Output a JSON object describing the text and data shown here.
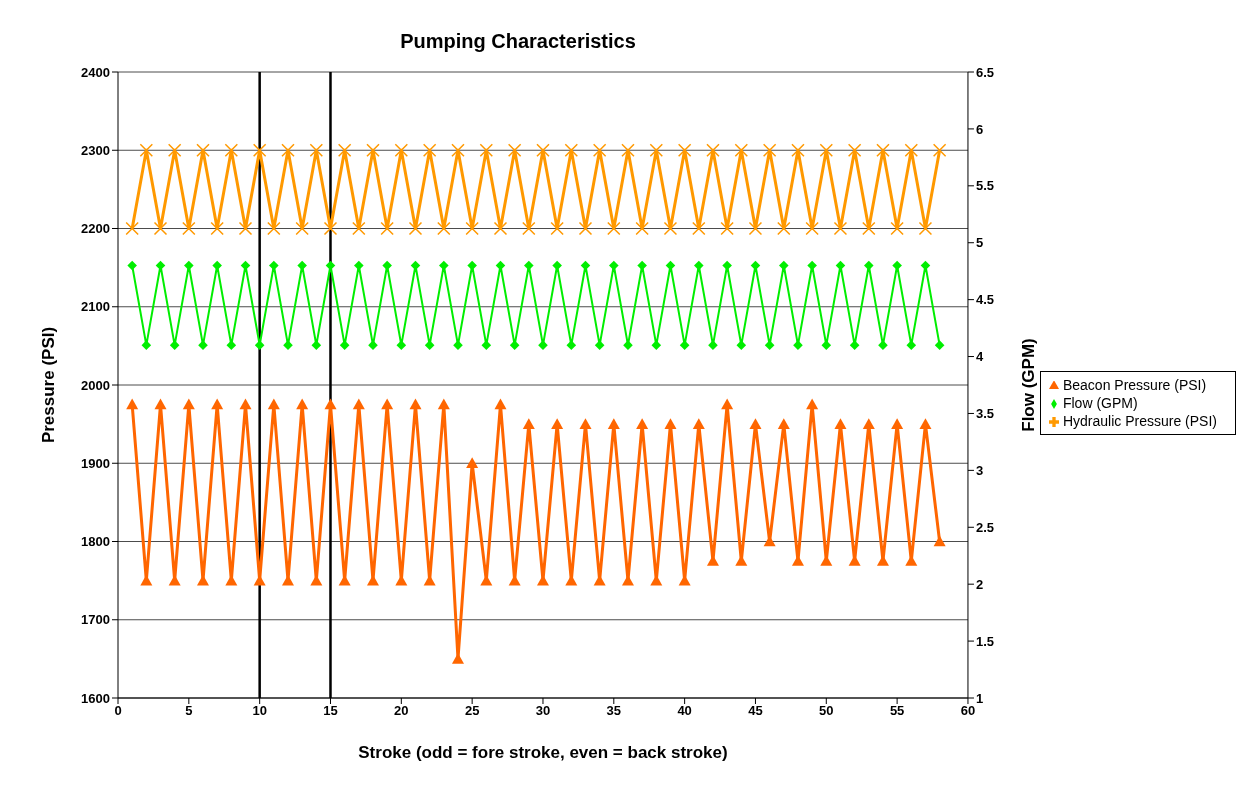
{
  "chart_data": {
    "type": "line",
    "title": "Pumping  Characteristics",
    "xlabel": "Stroke (odd = fore stroke, even = back stroke)",
    "ylabel": "Pressure (PSI)",
    "y2label": "Flow (GPM)",
    "x": [
      1,
      2,
      3,
      4,
      5,
      6,
      7,
      8,
      9,
      10,
      11,
      12,
      13,
      14,
      15,
      16,
      17,
      18,
      19,
      20,
      21,
      22,
      23,
      24,
      25,
      26,
      27,
      28,
      29,
      30,
      31,
      32,
      33,
      34,
      35,
      36,
      37,
      38,
      39,
      40,
      41,
      42,
      43,
      44,
      45,
      46,
      47,
      48,
      49,
      50,
      51,
      52,
      53,
      54,
      55,
      56,
      57,
      58
    ],
    "series": [
      {
        "name": "Beacon Pressure (PSI)",
        "color": "#ff6600",
        "marker": "triangle",
        "values": [
          1975,
          1750,
          1975,
          1750,
          1975,
          1750,
          1975,
          1750,
          1975,
          1750,
          1975,
          1750,
          1975,
          1750,
          1975,
          1750,
          1975,
          1750,
          1975,
          1750,
          1975,
          1750,
          1975,
          1650,
          1900,
          1750,
          1975,
          1750,
          1950,
          1750,
          1950,
          1750,
          1950,
          1750,
          1950,
          1750,
          1950,
          1750,
          1950,
          1750,
          1950,
          1775,
          1975,
          1775,
          1950,
          1800,
          1950,
          1775,
          1975,
          1775,
          1950,
          1775,
          1950,
          1775,
          1950,
          1775,
          1950,
          1800
        ]
      },
      {
        "name": "Hydraulic Pressure (PSI)",
        "color": "#ff9900",
        "marker": "cross",
        "values": [
          2200,
          2300,
          2200,
          2300,
          2200,
          2300,
          2200,
          2300,
          2200,
          2300,
          2200,
          2300,
          2200,
          2300,
          2200,
          2300,
          2200,
          2300,
          2200,
          2300,
          2200,
          2300,
          2200,
          2300,
          2200,
          2300,
          2200,
          2300,
          2200,
          2300,
          2200,
          2300,
          2200,
          2300,
          2200,
          2300,
          2200,
          2300,
          2200,
          2300,
          2200,
          2300,
          2200,
          2300,
          2200,
          2300,
          2200,
          2300,
          2200,
          2300,
          2200,
          2300,
          2200,
          2300,
          2200,
          2300,
          2200,
          2300
        ]
      },
      {
        "name": "Flow (GPM)",
        "color": "#00ee00",
        "marker": "diamond",
        "axis": "y2",
        "values": [
          4.8,
          4.1,
          4.8,
          4.1,
          4.8,
          4.1,
          4.8,
          4.1,
          4.8,
          4.1,
          4.8,
          4.1,
          4.8,
          4.1,
          4.8,
          4.1,
          4.8,
          4.1,
          4.8,
          4.1,
          4.8,
          4.1,
          4.8,
          4.1,
          4.8,
          4.1,
          4.8,
          4.1,
          4.8,
          4.1,
          4.8,
          4.1,
          4.8,
          4.1,
          4.8,
          4.1,
          4.8,
          4.1,
          4.8,
          4.1,
          4.8,
          4.1,
          4.8,
          4.1,
          4.8,
          4.1,
          4.8,
          4.1,
          4.8,
          4.1,
          4.8,
          4.1,
          4.8,
          4.1,
          4.8,
          4.1,
          4.8,
          4.1
        ]
      }
    ],
    "xlim": [
      0,
      60
    ],
    "xticks": [
      0,
      5,
      10,
      15,
      20,
      25,
      30,
      35,
      40,
      45,
      50,
      55,
      60
    ],
    "ylim": [
      1600,
      2400
    ],
    "yticks": [
      1600,
      1700,
      1800,
      1900,
      2000,
      2100,
      2200,
      2300,
      2400
    ],
    "y2lim": [
      1,
      6.5
    ],
    "y2ticks": [
      1,
      1.5,
      2,
      2.5,
      3,
      3.5,
      4,
      4.5,
      5,
      5.5,
      6,
      6.5
    ],
    "ref_lines": [
      {
        "axis": "x",
        "value": 10,
        "color": "#000000"
      },
      {
        "axis": "x",
        "value": 15,
        "color": "#000000"
      }
    ],
    "grid": "y",
    "legend": "right",
    "line_style": "solid"
  }
}
